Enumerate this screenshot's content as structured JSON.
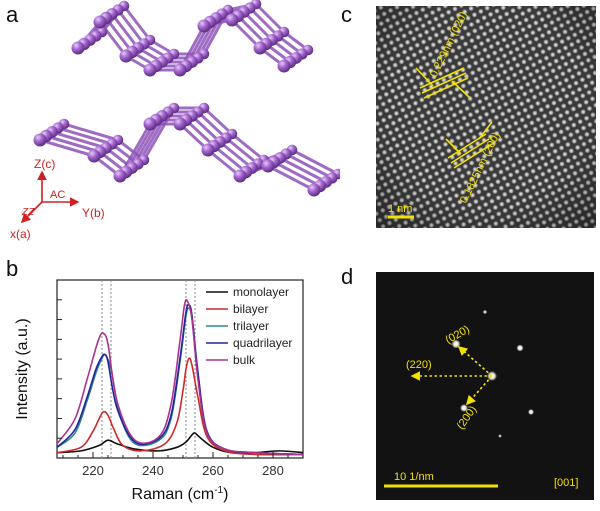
{
  "panels": {
    "a": "a",
    "b": "b",
    "c": "c",
    "d": "d"
  },
  "panel_a": {
    "axis_z": "Z(c)",
    "axis_y": "Y(b)",
    "axis_x": "x(a)",
    "label_zz": "ZZ",
    "label_ac": "AC",
    "atom_color": "#8e52b8",
    "axis_color": "#cc2222"
  },
  "panel_c": {
    "label_020": "0.229nm (020)",
    "label_200": "0.1825nm (200)",
    "scale_bar": "1 nm",
    "annotation_color": "#f2e200"
  },
  "panel_d": {
    "spot_020": "(020)",
    "spot_220": "(220)",
    "spot_200": "(200)",
    "scale_bar": "10 1/nm",
    "zone_axis": "[001]",
    "annotation_color": "#f2e200"
  },
  "chart_data": {
    "type": "line",
    "xlabel": "Raman (cm",
    "xlabel_sup": "-1",
    "xlabel_close": ")",
    "ylabel": "Intensity (a.u.)",
    "xlim": [
      208,
      290
    ],
    "ylim": [
      0,
      1
    ],
    "xticks": [
      220,
      240,
      260,
      280
    ],
    "legend_position": "top-right",
    "ref_lines": [
      223,
      226,
      251,
      254
    ],
    "series": [
      {
        "name": "monolayer",
        "color": "#111111",
        "x": [
          208,
          216,
          222,
          225,
          228,
          234,
          242,
          248,
          251,
          253,
          254,
          256,
          260,
          266,
          274,
          282,
          290
        ],
        "y": [
          0.03,
          0.04,
          0.07,
          0.1,
          0.08,
          0.05,
          0.04,
          0.06,
          0.09,
          0.13,
          0.14,
          0.11,
          0.06,
          0.03,
          0.03,
          0.04,
          0.03
        ]
      },
      {
        "name": "bilayer",
        "color": "#cc2a2a",
        "x": [
          208,
          216,
          220,
          222,
          223.5,
          225,
          227,
          230,
          236,
          244,
          248,
          250,
          251,
          252,
          253,
          255,
          258,
          264,
          274,
          290
        ],
        "y": [
          0.03,
          0.06,
          0.15,
          0.22,
          0.26,
          0.24,
          0.16,
          0.07,
          0.04,
          0.08,
          0.2,
          0.38,
          0.5,
          0.56,
          0.52,
          0.34,
          0.12,
          0.04,
          0.02,
          0.02
        ]
      },
      {
        "name": "trilayer",
        "color": "#2a8a86",
        "x": [
          208,
          214,
          218,
          221,
          223,
          224,
          226,
          229,
          234,
          242,
          246,
          249,
          251,
          252,
          253,
          255,
          258,
          264,
          274,
          290
        ],
        "y": [
          0.06,
          0.14,
          0.32,
          0.48,
          0.56,
          0.58,
          0.5,
          0.24,
          0.08,
          0.1,
          0.22,
          0.54,
          0.8,
          0.84,
          0.78,
          0.46,
          0.14,
          0.05,
          0.03,
          0.02
        ]
      },
      {
        "name": "quadrilayer",
        "color": "#22249a",
        "x": [
          208,
          214,
          218,
          221,
          223,
          224,
          225,
          228,
          234,
          242,
          246,
          249,
          251,
          252,
          253,
          255,
          258,
          264,
          274,
          290
        ],
        "y": [
          0.06,
          0.16,
          0.34,
          0.5,
          0.57,
          0.58,
          0.54,
          0.28,
          0.09,
          0.11,
          0.24,
          0.56,
          0.82,
          0.86,
          0.8,
          0.48,
          0.15,
          0.05,
          0.03,
          0.02
        ]
      },
      {
        "name": "bulk",
        "color": "#a8338f",
        "x": [
          208,
          214,
          218,
          221,
          222.5,
          223.5,
          225,
          228,
          234,
          242,
          246,
          249,
          250.5,
          251.5,
          253,
          255,
          258,
          264,
          274,
          290
        ],
        "y": [
          0.08,
          0.22,
          0.44,
          0.62,
          0.69,
          0.7,
          0.64,
          0.32,
          0.1,
          0.12,
          0.3,
          0.66,
          0.86,
          0.88,
          0.78,
          0.44,
          0.14,
          0.05,
          0.03,
          0.02
        ]
      }
    ]
  }
}
